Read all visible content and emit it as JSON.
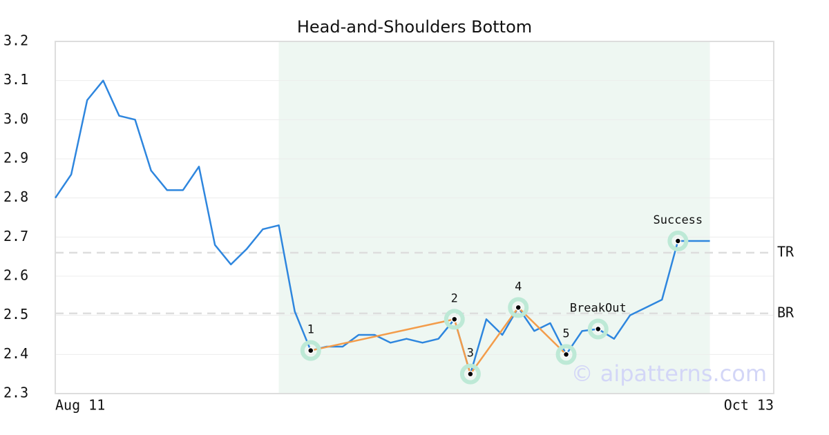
{
  "chart_data": {
    "type": "line",
    "title": "Head-and-Shoulders Bottom",
    "x": [
      0,
      1,
      2,
      3,
      4,
      5,
      6,
      7,
      8,
      9,
      10,
      11,
      12,
      13,
      14,
      15,
      16,
      17,
      18,
      19,
      20,
      21,
      22,
      23,
      24,
      25,
      26,
      27,
      28,
      29,
      30,
      31,
      32,
      33,
      34,
      35,
      36,
      37,
      38,
      39,
      40,
      41
    ],
    "values": [
      2.8,
      2.86,
      3.05,
      3.1,
      3.01,
      3.0,
      2.87,
      2.82,
      2.82,
      2.88,
      2.68,
      2.63,
      2.67,
      2.72,
      2.73,
      2.51,
      2.41,
      2.42,
      2.42,
      2.45,
      2.45,
      2.43,
      2.44,
      2.43,
      2.44,
      2.49,
      2.35,
      2.49,
      2.45,
      2.52,
      2.46,
      2.48,
      2.4,
      2.46,
      2.465,
      2.44,
      2.5,
      2.52,
      2.54,
      2.69,
      2.69,
      2.69
    ],
    "color": "#2e86de",
    "xlim": [
      0,
      45
    ],
    "xticks": [
      {
        "value": 0,
        "label": "Aug 11"
      },
      {
        "value": 45,
        "label": "Oct 13"
      }
    ],
    "ylim": [
      2.3,
      3.2
    ],
    "yticks": [
      2.3,
      2.4,
      2.5,
      2.6,
      2.7,
      2.8,
      2.9,
      {
        "value": 3,
        "label": "3.0"
      },
      3.1,
      3.2
    ],
    "grid": true,
    "highlight_range": [
      14,
      41
    ],
    "pattern_points": {
      "labels": [
        "1",
        "2",
        "3",
        "4",
        "5"
      ],
      "x": [
        16,
        25,
        26,
        29,
        32
      ],
      "values": [
        2.41,
        2.49,
        2.35,
        2.52,
        2.4
      ],
      "color": "#f39c4a"
    },
    "events": {
      "labels": [
        "BreakOut",
        "Success"
      ],
      "x": [
        34,
        39
      ],
      "values": [
        2.465,
        2.69
      ]
    },
    "levels": [
      {
        "label": "TR",
        "value": 2.66
      },
      {
        "label": "BR",
        "value": 2.505
      }
    ],
    "watermark": "© aipatterns.com"
  }
}
